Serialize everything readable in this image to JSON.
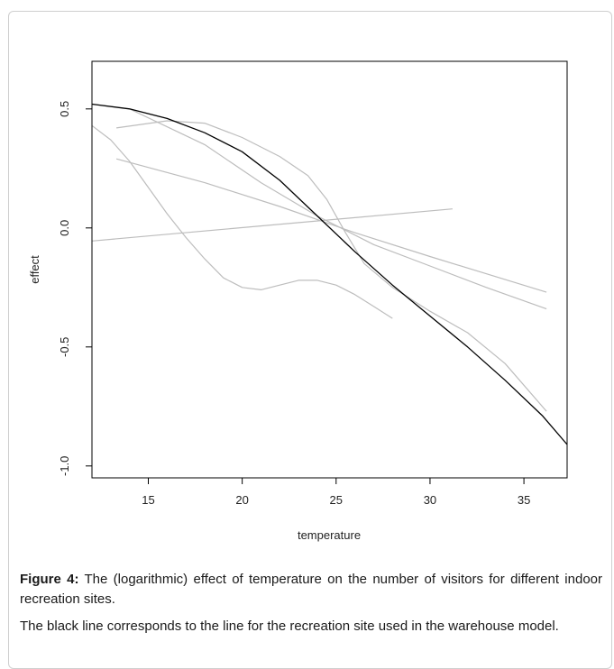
{
  "caption": {
    "label": "Figure 4:",
    "text": " The (logarithmic) effect of temperature on the number of visitors for different indoor recreation sites.",
    "note": "The black line corresponds to the line for the recreation site used in the warehouse model."
  },
  "chart_data": {
    "type": "line",
    "title": "",
    "xlabel": "temperature",
    "ylabel": "effect",
    "xlim": [
      12,
      37.3
    ],
    "ylim": [
      -1.05,
      0.7
    ],
    "x_ticks": [
      15,
      20,
      25,
      30,
      35
    ],
    "y_ticks": [
      -1.0,
      -0.5,
      0.0,
      0.5
    ],
    "y_tick_labels": [
      "-1.0",
      "-0.5",
      "0.0",
      "0.5"
    ],
    "grid": false,
    "legend": null,
    "colors": {
      "main": "#000000",
      "other": "#bdbdbd"
    },
    "series": [
      {
        "color": "#000000",
        "x": [
          12,
          14,
          16,
          18,
          20,
          22,
          24,
          26,
          28,
          30,
          32,
          34,
          36,
          37.3
        ],
        "y": [
          0.52,
          0.5,
          0.46,
          0.4,
          0.32,
          0.2,
          0.05,
          -0.1,
          -0.24,
          -0.37,
          -0.5,
          -0.64,
          -0.79,
          -0.91
        ]
      },
      {
        "color": "#bdbdbd",
        "x": [
          13.3,
          16,
          18,
          20,
          22,
          23.5,
          24.5,
          25.5,
          26.5,
          28,
          30,
          32,
          34,
          36.2
        ],
        "y": [
          0.42,
          0.45,
          0.44,
          0.38,
          0.3,
          0.22,
          0.12,
          -0.02,
          -0.15,
          -0.25,
          -0.35,
          -0.44,
          -0.57,
          -0.77
        ]
      },
      {
        "color": "#bdbdbd",
        "x": [
          12,
          13,
          14,
          15,
          16,
          17,
          18,
          19,
          20,
          21,
          22,
          23,
          24,
          25,
          26,
          27,
          28
        ],
        "y": [
          0.43,
          0.37,
          0.28,
          0.17,
          0.06,
          -0.04,
          -0.13,
          -0.21,
          -0.25,
          -0.26,
          -0.24,
          -0.22,
          -0.22,
          -0.24,
          -0.28,
          -0.33,
          -0.38
        ]
      },
      {
        "color": "#bdbdbd",
        "x": [
          13.3,
          18,
          22,
          26,
          30,
          36.2
        ],
        "y": [
          0.29,
          0.19,
          0.09,
          -0.02,
          -0.12,
          -0.27
        ]
      },
      {
        "color": "#bdbdbd",
        "x": [
          14,
          18,
          21,
          24,
          27,
          30,
          33,
          36.2
        ],
        "y": [
          0.5,
          0.35,
          0.19,
          0.05,
          -0.07,
          -0.16,
          -0.25,
          -0.34
        ]
      },
      {
        "color": "#bdbdbd",
        "x": [
          12,
          31.2
        ],
        "y": [
          -0.055,
          0.08
        ]
      }
    ]
  }
}
